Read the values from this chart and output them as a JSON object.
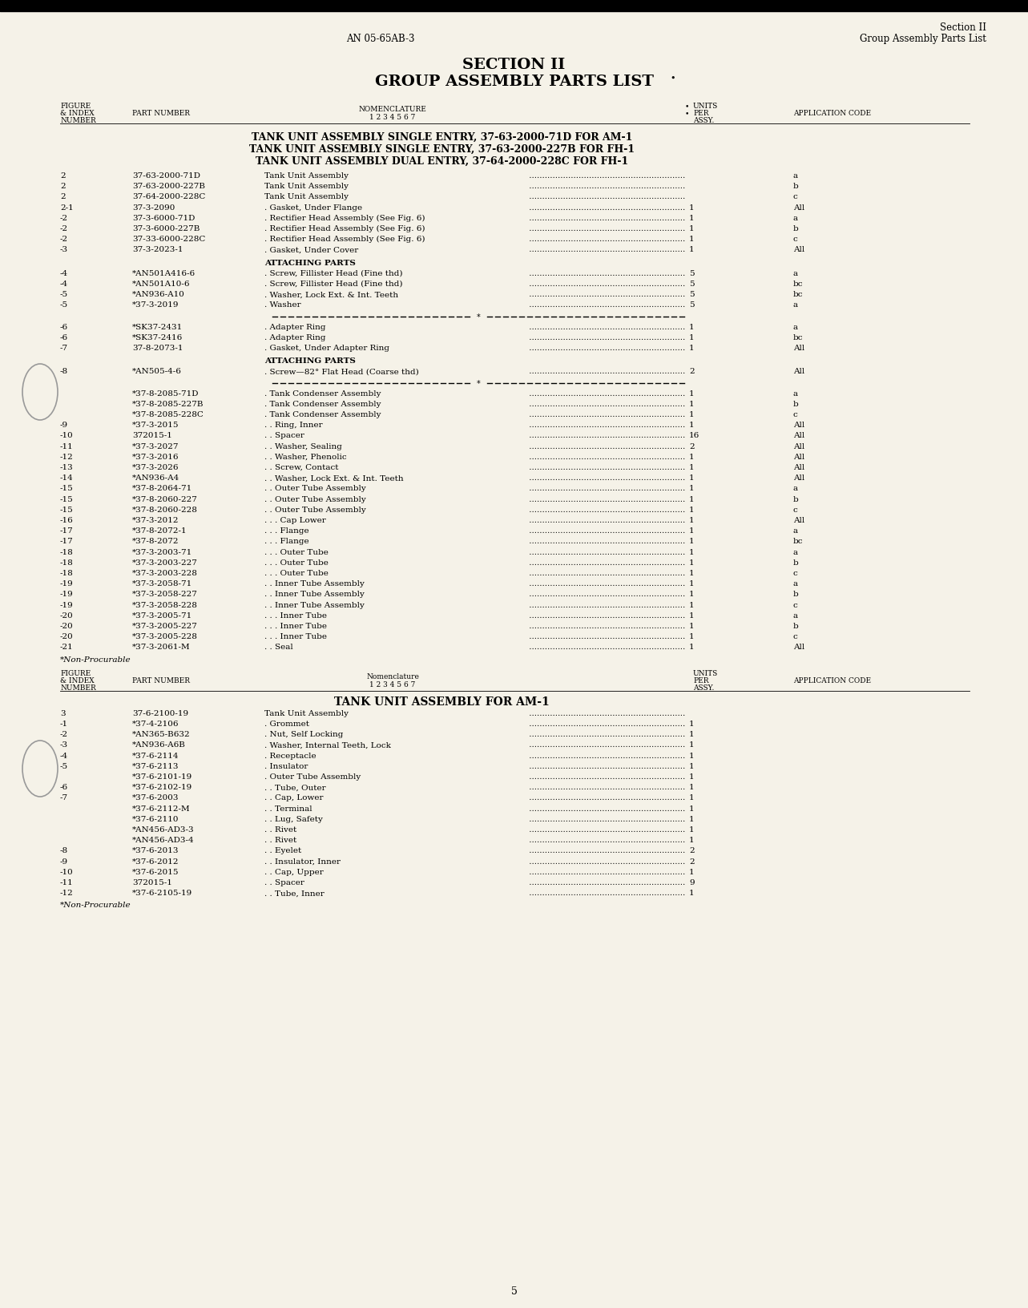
{
  "bg_color": "#f5f2e8",
  "page_number": "5",
  "header_left": "AN 05-65AB-3",
  "header_right_l1": "Section II",
  "header_right_l2": "Group Assembly Parts List",
  "title_l1": "SECTION II",
  "title_l2": "GROUP ASSEMBLY PARTS LIST",
  "tank_titles": [
    "TANK UNIT ASSEMBLY SINGLE ENTRY, 37-63-2000-71D FOR AM-1",
    "TANK UNIT ASSEMBLY SINGLE ENTRY, 37-63-2000-227B FOR FH-1",
    "TANK UNIT ASSEMBLY DUAL ENTRY, 37-64-2000-228C FOR FH-1"
  ],
  "tank_title2": "TANK UNIT ASSEMBLY FOR AM-1",
  "col_x": {
    "fig": 75,
    "part": 165,
    "nom": 330,
    "units": 870,
    "app": 990
  },
  "section1_rows": [
    {
      "fig": "2",
      "part": "37-63-2000-71D",
      "nom": "Tank Unit Assembly",
      "dots": true,
      "units": "",
      "app": "a"
    },
    {
      "fig": "2",
      "part": "37-63-2000-227B",
      "nom": "Tank Unit Assembly",
      "dots": true,
      "units": "",
      "app": "b"
    },
    {
      "fig": "2",
      "part": "37-64-2000-228C",
      "nom": "Tank Unit Assembly",
      "dots": true,
      "units": "",
      "app": "c"
    },
    {
      "fig": "2-1",
      "part": "37-3-2090",
      "nom": ". Gasket, Under Flange",
      "dots": true,
      "units": "1",
      "app": "All"
    },
    {
      "fig": "-2",
      "part": "37-3-6000-71D",
      "nom": ". Rectifier Head Assembly (See Fig. 6)",
      "dots": true,
      "units": "1",
      "app": "a"
    },
    {
      "fig": "-2",
      "part": "37-3-6000-227B",
      "nom": ". Rectifier Head Assembly (See Fig. 6)",
      "dots": true,
      "units": "1",
      "app": "b"
    },
    {
      "fig": "-2",
      "part": "37-33-6000-228C",
      "nom": ". Rectifier Head Assembly (See Fig. 6)",
      "dots": true,
      "units": "1",
      "app": "c"
    },
    {
      "fig": "-3",
      "part": "37-3-2023-1",
      "nom": ". Gasket, Under Cover",
      "dots": true,
      "units": "1",
      "app": "All"
    }
  ],
  "attaching1_rows": [
    {
      "fig": "-4",
      "part": "*AN501A416-6",
      "nom": ". Screw, Fillister Head (Fine thd)",
      "dots": true,
      "units": "5",
      "app": "a"
    },
    {
      "fig": "-4",
      "part": "*AN501A10-6",
      "nom": ". Screw, Fillister Head (Fine thd)",
      "dots": true,
      "units": "5",
      "app": "bc"
    },
    {
      "fig": "-5",
      "part": "*AN936-A10",
      "nom": ". Washer, Lock Ext. & Int. Teeth",
      "dots": true,
      "units": "5",
      "app": "bc"
    },
    {
      "fig": "-5",
      "part": "*37-3-2019",
      "nom": ". Washer",
      "dots": true,
      "units": "5",
      "app": "a"
    }
  ],
  "section1b_rows": [
    {
      "fig": "-6",
      "part": "*SK37-2431",
      "nom": ". Adapter Ring",
      "dots": true,
      "units": "1",
      "app": "a"
    },
    {
      "fig": "-6",
      "part": "*SK37-2416",
      "nom": ". Adapter Ring",
      "dots": true,
      "units": "1",
      "app": "bc"
    },
    {
      "fig": "-7",
      "part": "37-8-2073-1",
      "nom": ". Gasket, Under Adapter Ring",
      "dots": true,
      "units": "1",
      "app": "All"
    }
  ],
  "attaching2_rows": [
    {
      "fig": "-8",
      "part": "*AN505-4-6",
      "nom": ". Screw—82° Flat Head (Coarse thd)",
      "dots": true,
      "units": "2",
      "app": "All"
    }
  ],
  "section1c_rows": [
    {
      "fig": "",
      "part": "*37-8-2085-71D",
      "nom": ". Tank Condenser Assembly",
      "dots": true,
      "units": "1",
      "app": "a"
    },
    {
      "fig": "",
      "part": "*37-8-2085-227B",
      "nom": ". Tank Condenser Assembly",
      "dots": true,
      "units": "1",
      "app": "b"
    },
    {
      "fig": "",
      "part": "*37-8-2085-228C",
      "nom": ". Tank Condenser Assembly",
      "dots": true,
      "units": "1",
      "app": "c"
    },
    {
      "fig": "-9",
      "part": "*37-3-2015",
      "nom": ". . Ring, Inner",
      "dots": true,
      "units": "1",
      "app": "All"
    },
    {
      "fig": "-10",
      "part": "372015-1",
      "nom": ". . Spacer",
      "dots": true,
      "units": "16",
      "app": "All"
    },
    {
      "fig": "-11",
      "part": "*37-3-2027",
      "nom": ". . Washer, Sealing",
      "dots": true,
      "units": "2",
      "app": "All"
    },
    {
      "fig": "-12",
      "part": "*37-3-2016",
      "nom": ". . Washer, Phenolic",
      "dots": true,
      "units": "1",
      "app": "All"
    },
    {
      "fig": "-13",
      "part": "*37-3-2026",
      "nom": ". . Screw, Contact",
      "dots": true,
      "units": "1",
      "app": "All"
    },
    {
      "fig": "-14",
      "part": "*AN936-A4",
      "nom": ". . Washer, Lock Ext. & Int. Teeth",
      "dots": true,
      "units": "1",
      "app": "All"
    },
    {
      "fig": "-15",
      "part": "*37-8-2064-71",
      "nom": ". . Outer Tube Assembly",
      "dots": true,
      "units": "1",
      "app": "a"
    },
    {
      "fig": "-15",
      "part": "*37-8-2060-227",
      "nom": ". . Outer Tube Assembly",
      "dots": true,
      "units": "1",
      "app": "b"
    },
    {
      "fig": "-15",
      "part": "*37-8-2060-228",
      "nom": ". . Outer Tube Assembly",
      "dots": true,
      "units": "1",
      "app": "c"
    },
    {
      "fig": "-16",
      "part": "*37-3-2012",
      "nom": ". . . Cap Lower",
      "dots": true,
      "units": "1",
      "app": "All"
    },
    {
      "fig": "-17",
      "part": "*37-8-2072-1",
      "nom": ". . . Flange",
      "dots": true,
      "units": "1",
      "app": "a"
    },
    {
      "fig": "-17",
      "part": "*37-8-2072",
      "nom": ". . . Flange",
      "dots": true,
      "units": "1",
      "app": "bc"
    },
    {
      "fig": "-18",
      "part": "*37-3-2003-71",
      "nom": ". . . Outer Tube",
      "dots": true,
      "units": "1",
      "app": "a"
    },
    {
      "fig": "-18",
      "part": "*37-3-2003-227",
      "nom": ". . . Outer Tube",
      "dots": true,
      "units": "1",
      "app": "b"
    },
    {
      "fig": "-18",
      "part": "*37-3-2003-228",
      "nom": ". . . Outer Tube",
      "dots": true,
      "units": "1",
      "app": "c"
    },
    {
      "fig": "-19",
      "part": "*37-3-2058-71",
      "nom": ". . Inner Tube Assembly",
      "dots": true,
      "units": "1",
      "app": "a"
    },
    {
      "fig": "-19",
      "part": "*37-3-2058-227",
      "nom": ". . Inner Tube Assembly",
      "dots": true,
      "units": "1",
      "app": "b"
    },
    {
      "fig": "-19",
      "part": "*37-3-2058-228",
      "nom": ". . Inner Tube Assembly",
      "dots": true,
      "units": "1",
      "app": "c"
    },
    {
      "fig": "-20",
      "part": "*37-3-2005-71",
      "nom": ". . . Inner Tube",
      "dots": true,
      "units": "1",
      "app": "a"
    },
    {
      "fig": "-20",
      "part": "*37-3-2005-227",
      "nom": ". . . Inner Tube",
      "dots": true,
      "units": "1",
      "app": "b"
    },
    {
      "fig": "-20",
      "part": "*37-3-2005-228",
      "nom": ". . . Inner Tube",
      "dots": true,
      "units": "1",
      "app": "c"
    },
    {
      "fig": "-21",
      "part": "*37-3-2061-M",
      "nom": ". . Seal",
      "dots": true,
      "units": "1",
      "app": "All"
    }
  ],
  "section2_rows": [
    {
      "fig": "3",
      "part": "37-6-2100-19",
      "nom": "Tank Unit Assembly",
      "dots": true,
      "units": "",
      "app": ""
    },
    {
      "fig": "-1",
      "part": "*37-4-2106",
      "nom": ". Grommet",
      "dots": true,
      "units": "1",
      "app": ""
    },
    {
      "fig": "-2",
      "part": "*AN365-B632",
      "nom": ". Nut, Self Locking",
      "dots": true,
      "units": "1",
      "app": ""
    },
    {
      "fig": "-3",
      "part": "*AN936-A6B",
      "nom": ". Washer, Internal Teeth, Lock",
      "dots": true,
      "units": "1",
      "app": ""
    },
    {
      "fig": "-4",
      "part": "*37-6-2114",
      "nom": ". Receptacle",
      "dots": true,
      "units": "1",
      "app": ""
    },
    {
      "fig": "-5",
      "part": "*37-6-2113",
      "nom": ". Insulator",
      "dots": true,
      "units": "1",
      "app": ""
    },
    {
      "fig": "",
      "part": "*37-6-2101-19",
      "nom": ". Outer Tube Assembly",
      "dots": true,
      "units": "1",
      "app": ""
    },
    {
      "fig": "-6",
      "part": "*37-6-2102-19",
      "nom": ". . Tube, Outer",
      "dots": true,
      "units": "1",
      "app": ""
    },
    {
      "fig": "-7",
      "part": "*37-6-2003",
      "nom": ". . Cap, Lower",
      "dots": true,
      "units": "1",
      "app": ""
    },
    {
      "fig": "",
      "part": "*37-6-2112-M",
      "nom": ". . Terminal",
      "dots": true,
      "units": "1",
      "app": ""
    },
    {
      "fig": "",
      "part": "*37-6-2110",
      "nom": ". . Lug, Safety",
      "dots": true,
      "units": "1",
      "app": ""
    },
    {
      "fig": "",
      "part": "*AN456-AD3-3",
      "nom": ". . Rivet",
      "dots": true,
      "units": "1",
      "app": ""
    },
    {
      "fig": "",
      "part": "*AN456-AD3-4",
      "nom": ". . Rivet",
      "dots": true,
      "units": "1",
      "app": ""
    },
    {
      "fig": "-8",
      "part": "*37-6-2013",
      "nom": ". . Eyelet",
      "dots": true,
      "units": "2",
      "app": ""
    },
    {
      "fig": "-9",
      "part": "*37-6-2012",
      "nom": ". . Insulator, Inner",
      "dots": true,
      "units": "2",
      "app": ""
    },
    {
      "fig": "-10",
      "part": "*37-6-2015",
      "nom": ". . Cap, Upper",
      "dots": true,
      "units": "1",
      "app": ""
    },
    {
      "fig": "-11",
      "part": "372015-1",
      "nom": ". . Spacer",
      "dots": true,
      "units": "9",
      "app": ""
    },
    {
      "fig": "-12",
      "part": "*37-6-2105-19",
      "nom": ". . Tube, Inner",
      "dots": true,
      "units": "1",
      "app": ""
    }
  ]
}
